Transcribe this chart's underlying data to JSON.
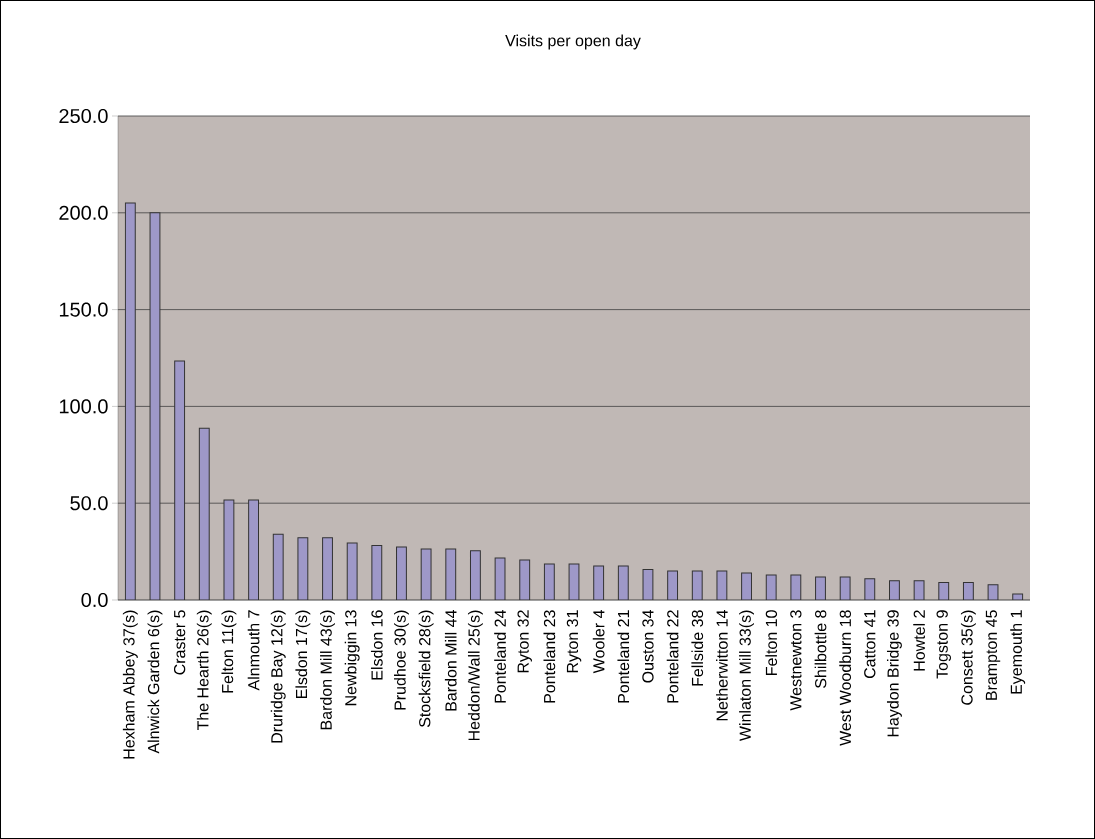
{
  "chart_data": {
    "type": "bar",
    "title": "Visits per open day",
    "categories": [
      "Hexham Abbey 37(s)",
      "Alnwick Garden 6(s)",
      "Craster 5",
      "The Hearth 26(s)",
      "Felton 11(s)",
      "Alnmouth 7",
      "Druridge Bay 12(s)",
      "Elsdon 17(s)",
      "Bardon Mill 43(s)",
      "Newbiggin 13",
      "Elsdon 16",
      "Prudhoe 30(s)",
      "Stocksfield 28(s)",
      "Bardon Mill 44",
      "Heddon/Wall 25(s)",
      "Ponteland 24",
      "Ryton 32",
      "Ponteland 23",
      "Ryton 31",
      "Wooler 4",
      "Ponteland 21",
      "Ouston 34",
      "Ponteland 22",
      "Fellside 38",
      "Netherwitton 14",
      "Winlaton Mill 33(s)",
      "Felton 10",
      "Westnewton 3",
      "Shilbottle 8",
      "West Woodburn 18",
      "Catton 41",
      "Haydon Bridge 39",
      "Howtel 2",
      "Togston 9",
      "Consett 35(s)",
      "Brampton 45",
      "Eyemouth 1"
    ],
    "values": [
      205,
      200,
      123.5,
      88.7,
      51.7,
      51.7,
      34,
      32.2,
      32.2,
      29.4,
      28.2,
      27.4,
      26.3,
      26.3,
      25.5,
      21.7,
      20.7,
      18.6,
      18.6,
      17.6,
      17.6,
      15.8,
      15,
      15,
      15,
      13.9,
      12.9,
      12.9,
      11.9,
      11.9,
      11,
      10,
      10,
      9,
      9,
      7.9,
      3.1
    ],
    "color": "#9e98c8",
    "ylim": [
      0,
      250
    ],
    "yticks": [
      {
        "value": 0,
        "label": "0.0"
      },
      {
        "value": 50,
        "label": "50.0"
      },
      {
        "value": 100,
        "label": "100.0"
      },
      {
        "value": 150,
        "label": "150.0"
      },
      {
        "value": 200,
        "label": "200.0"
      },
      {
        "value": 250,
        "label": "250.0"
      }
    ],
    "grid": "y"
  }
}
